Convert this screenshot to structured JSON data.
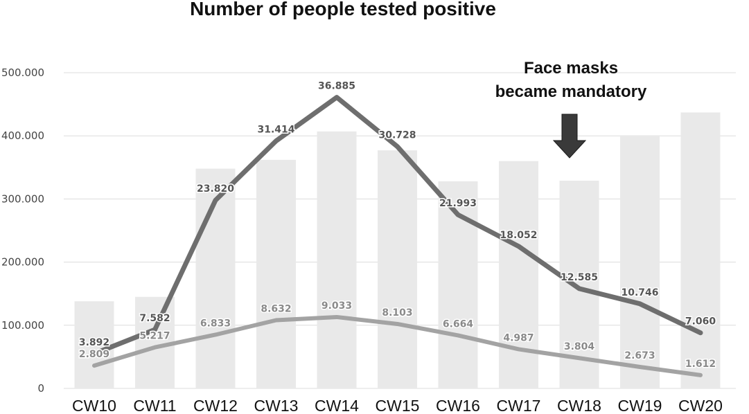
{
  "chart_data": {
    "type": "bar",
    "title": "Number of people tested positive",
    "xlabel": "",
    "ylabel": "",
    "categories": [
      "CW10",
      "CW11",
      "CW12",
      "CW13",
      "CW14",
      "CW15",
      "CW16",
      "CW17",
      "CW18",
      "CW19",
      "CW20"
    ],
    "ylim": [
      0,
      500000
    ],
    "yticks": [
      0,
      100000,
      200000,
      300000,
      400000,
      500000
    ],
    "ytick_labels": [
      "0",
      "100.000",
      "200.000",
      "300.000",
      "400.000",
      "500.000"
    ],
    "grid": true,
    "bars": {
      "values": [
        138000,
        145000,
        348000,
        362000,
        407000,
        377000,
        328000,
        360000,
        329000,
        401000,
        437000
      ],
      "color": "#e9e9e9"
    },
    "series": [
      {
        "type": "line",
        "values": [
          3892,
          7582,
          23820,
          31414,
          36885,
          30728,
          21993,
          18052,
          12585,
          10746,
          7060
        ],
        "labels": [
          "3.892",
          "7.582",
          "23.820",
          "31.414",
          "36.885",
          "30.728",
          "21.993",
          "18.052",
          "12.585",
          "10.746",
          "7.060"
        ],
        "plot_y": [
          55000,
          93000,
          298000,
          392000,
          461000,
          383000,
          275000,
          225000,
          158000,
          134000,
          88000
        ],
        "color": "#6e6e6e",
        "label_color": "#555555"
      },
      {
        "type": "line",
        "values": [
          2809,
          5217,
          6833,
          8632,
          9033,
          8103,
          6664,
          4987,
          3804,
          2673,
          1612
        ],
        "labels": [
          "2.809",
          "5.217",
          "6.833",
          "8.632",
          "9.033",
          "8.103",
          "6.664",
          "4.987",
          "3.804",
          "2.673",
          "1.612"
        ],
        "plot_y": [
          36000,
          65000,
          85000,
          108000,
          113000,
          102000,
          84000,
          62000,
          48000,
          34000,
          21000
        ],
        "color": "#a3a3a3",
        "label_color": "#8a8a8a"
      }
    ],
    "annotation": {
      "lines": [
        "Face masks",
        "became mandatory"
      ],
      "category": "CW18",
      "arrow_color": "#3a3a3a"
    }
  }
}
